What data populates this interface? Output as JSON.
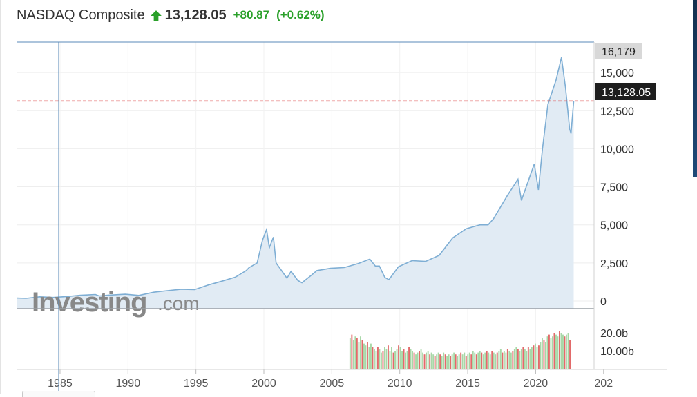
{
  "header": {
    "title": "NASDAQ Composite",
    "price": "13,128.05",
    "change": "+80.87",
    "change_pct": "(+0.62%)",
    "direction_icon": "arrow-up-icon",
    "up_color": "#2aa02a"
  },
  "logo": {
    "brand": "Investing",
    "suffix": ".com"
  },
  "chart_data": {
    "type": "area",
    "series": [
      {
        "x": [
          1981.8,
          1982.5,
          1983.5,
          1984.5,
          1985.5,
          1986.5,
          1987.6,
          1987.9,
          1988.5,
          1989.8,
          1990.8,
          1991.9,
          1992.9,
          1993.9,
          1994.9,
          1995.9,
          1996.9,
          1997.9,
          1998.7,
          1998.9,
          1999.5,
          1999.9,
          2000.2,
          2000.4,
          2000.7,
          2000.9,
          2001.3,
          2001.7,
          2002.0,
          2002.5,
          2002.8,
          2003.5,
          2003.9,
          2004.9,
          2005.9,
          2006.9,
          2007.8,
          2008.2,
          2008.5,
          2008.9,
          2009.2,
          2009.9,
          2010.9,
          2011.9,
          2012.9,
          2013.9,
          2014.9,
          2015.9,
          2016.5,
          2016.9,
          2017.9,
          2018.7,
          2018.95,
          2019.9,
          2020.2,
          2020.5,
          2020.9,
          2021.5,
          2021.9,
          2022.2,
          2022.5,
          2022.6,
          2022.8
        ],
        "values": [
          200,
          180,
          280,
          240,
          300,
          380,
          430,
          330,
          380,
          450,
          370,
          580,
          680,
          770,
          750,
          1050,
          1300,
          1570,
          2000,
          2190,
          2500,
          4000,
          4700,
          3500,
          4200,
          2500,
          2000,
          1500,
          1950,
          1350,
          1200,
          1700,
          2000,
          2150,
          2200,
          2450,
          2750,
          2300,
          2300,
          1550,
          1400,
          2250,
          2650,
          2600,
          3000,
          4150,
          4750,
          5000,
          5000,
          5400,
          6900,
          8000,
          6600,
          9000,
          7300,
          10000,
          12900,
          14500,
          16000,
          14000,
          11300,
          11000,
          13128.05
        ]
      }
    ],
    "volume": {
      "x_start": 2006.3,
      "x_end": 2022.6,
      "unit": "b",
      "values": [
        17,
        19,
        16,
        18,
        17,
        15,
        18,
        16,
        14,
        13,
        15,
        12,
        14,
        12,
        11,
        10,
        12,
        11,
        9,
        10,
        12,
        11,
        13,
        10,
        12,
        9,
        10,
        11,
        13,
        12,
        10,
        11,
        9,
        10,
        12,
        11,
        10,
        9,
        8,
        9,
        10,
        11,
        9,
        8,
        9,
        10,
        8,
        9,
        8,
        7,
        8,
        9,
        8,
        7,
        9,
        8,
        7,
        8,
        7,
        8,
        9,
        8,
        7,
        8,
        9,
        8,
        9,
        7,
        8,
        9,
        8,
        10,
        9,
        8,
        9,
        10,
        9,
        8,
        9,
        10,
        9,
        8,
        10,
        9,
        8,
        9,
        10,
        11,
        9,
        10,
        9,
        11,
        10,
        9,
        10,
        11,
        12,
        11,
        10,
        11,
        12,
        11,
        10,
        12,
        11,
        12,
        13,
        14,
        12,
        13,
        15,
        17,
        16,
        15,
        18,
        19,
        17,
        18,
        20,
        19,
        18,
        21,
        20,
        19,
        18,
        19,
        20,
        16
      ],
      "ticks": [
        "20.0b",
        "10.00b"
      ]
    },
    "x_ticks": [
      "1985",
      "1990",
      "1995",
      "2000",
      "2005",
      "2010",
      "2015",
      "2020",
      "202"
    ],
    "y_ticks": [
      "0",
      "2,500",
      "5,000",
      "7,500",
      "10,000",
      "12,500",
      "15,000"
    ],
    "ylim": [
      0,
      17000
    ],
    "xlim": [
      1981.8,
      2024.3
    ],
    "max_label": "16,179",
    "last_price_label": "13,128.05",
    "crosshair_x": 1984.9,
    "line_color": "#7eaed4",
    "fill_color": "#e1ebf4",
    "price_line_color": "#e05555",
    "volume_up_color": "#a8d8a8",
    "volume_down_color": "#e26a6a",
    "grid": true
  }
}
